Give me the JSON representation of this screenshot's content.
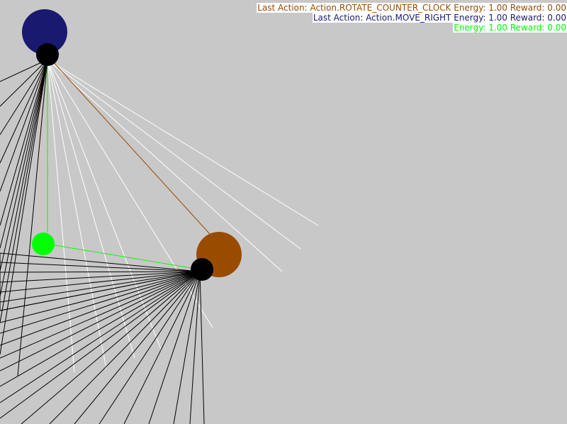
{
  "hud": [
    {
      "agent": "orange",
      "text": "Last Action: Action.ROTATE_COUNTER_CLOCK Energy: 1.00 Reward: 0.00"
    },
    {
      "agent": "navy",
      "text": "Last Action: Action.MOVE_RIGHT Energy: 1.00 Reward: 0.00"
    },
    {
      "agent": "green",
      "text": "Energy: 1.00 Reward: 0.00"
    }
  ],
  "colors": {
    "background": "#c8c8c8",
    "orange": "#994c00",
    "navy": "#191970",
    "green": "#00ff00",
    "eye": "#000000",
    "ray_hit": "#000000",
    "ray_miss": "#ffffff"
  }
}
